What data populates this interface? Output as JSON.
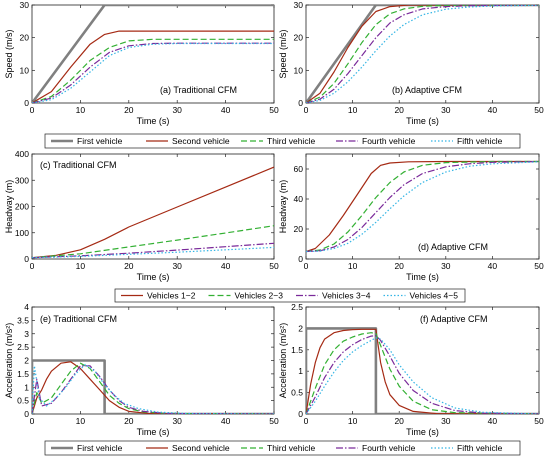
{
  "chart_data": [
    {
      "type": "line",
      "panel": "a",
      "annotation": "(a) Traditional CFM",
      "xlabel": "Time (s)",
      "ylabel": "Speed (m/s)",
      "xlim": [
        0,
        50
      ],
      "ylim": [
        0,
        30
      ],
      "xticks": [
        0,
        10,
        20,
        30,
        40,
        50
      ],
      "yticks": [
        0,
        10,
        20,
        30
      ],
      "series": [
        {
          "name": "First vehicle",
          "x": [
            0,
            15,
            50
          ],
          "y": [
            0,
            30,
            30
          ]
        },
        {
          "name": "Second vehicle",
          "x": [
            0,
            4,
            8,
            12,
            15,
            18,
            22,
            30,
            50
          ],
          "y": [
            0,
            3.5,
            11,
            18,
            21,
            22,
            22,
            22,
            22
          ]
        },
        {
          "name": "Third vehicle",
          "x": [
            0,
            4,
            8,
            12,
            16,
            20,
            25,
            30,
            50
          ],
          "y": [
            0,
            2,
            7,
            13,
            17,
            19,
            19.5,
            19.5,
            19.5
          ]
        },
        {
          "name": "Fourth vehicle",
          "x": [
            0,
            4,
            8,
            12,
            16,
            20,
            25,
            30,
            50
          ],
          "y": [
            0,
            1.5,
            5.5,
            11,
            15.5,
            17.5,
            18.2,
            18.3,
            18.3
          ]
        },
        {
          "name": "Fifth vehicle",
          "x": [
            0,
            4,
            8,
            12,
            16,
            20,
            25,
            30,
            50
          ],
          "y": [
            0,
            1,
            4.5,
            9.5,
            14.5,
            17,
            18,
            18.2,
            18.2
          ]
        }
      ]
    },
    {
      "type": "line",
      "panel": "b",
      "annotation": "(b) Adaptive CFM",
      "xlabel": "Time (s)",
      "ylabel": "Speed (m/s)",
      "xlim": [
        0,
        50
      ],
      "ylim": [
        0,
        30
      ],
      "xticks": [
        0,
        10,
        20,
        30,
        40,
        50
      ],
      "yticks": [
        0,
        10,
        20,
        30
      ],
      "series": [
        {
          "name": "First vehicle",
          "x": [
            0,
            15,
            50
          ],
          "y": [
            0,
            30,
            30
          ]
        },
        {
          "name": "Second vehicle",
          "x": [
            0,
            3,
            6,
            9,
            12,
            15,
            18,
            22,
            50
          ],
          "y": [
            0,
            3,
            9.5,
            17,
            23.5,
            28,
            29.5,
            30,
            30
          ]
        },
        {
          "name": "Third vehicle",
          "x": [
            0,
            3,
            6,
            9,
            12,
            15,
            18,
            21,
            25,
            30,
            50
          ],
          "y": [
            0,
            1.8,
            6,
            12,
            18.5,
            24,
            27.3,
            28.8,
            29.6,
            29.9,
            30
          ]
        },
        {
          "name": "Fourth vehicle",
          "x": [
            0,
            3,
            6,
            9,
            12,
            15,
            18,
            21,
            25,
            30,
            35,
            50
          ],
          "y": [
            0,
            1.2,
            4.2,
            9,
            14.5,
            20,
            24.5,
            27,
            28.8,
            29.5,
            29.8,
            30
          ]
        },
        {
          "name": "Fifth vehicle",
          "x": [
            0,
            3,
            6,
            9,
            12,
            15,
            18,
            21,
            25,
            30,
            35,
            40,
            50
          ],
          "y": [
            0,
            0.8,
            3,
            6.5,
            11,
            16,
            20.5,
            24,
            27,
            28.7,
            29.4,
            29.7,
            29.9
          ]
        }
      ]
    },
    {
      "type": "line",
      "panel": "c",
      "annotation": "(c) Traditional CFM",
      "xlabel": "Time (s)",
      "ylabel": "Headway (m)",
      "xlim": [
        0,
        50
      ],
      "ylim": [
        0,
        400
      ],
      "xticks": [
        0,
        10,
        20,
        30,
        40,
        50
      ],
      "yticks": [
        0,
        100,
        200,
        300,
        400
      ],
      "series": [
        {
          "name": "Vehicles 1−2",
          "x": [
            0,
            5,
            10,
            15,
            20,
            30,
            40,
            50
          ],
          "y": [
            5,
            14,
            35,
            75,
            122,
            198,
            274,
            350
          ]
        },
        {
          "name": "Vehicles 2−3",
          "x": [
            0,
            10,
            20,
            30,
            40,
            50
          ],
          "y": [
            5,
            20,
            46,
            72,
            99,
            127
          ]
        },
        {
          "name": "Vehicles 3−4",
          "x": [
            0,
            10,
            20,
            30,
            40,
            50
          ],
          "y": [
            5,
            12,
            22,
            34,
            47,
            60
          ]
        },
        {
          "name": "Vehicles 4−5",
          "x": [
            0,
            10,
            20,
            30,
            40,
            50
          ],
          "y": [
            5,
            10,
            18,
            26,
            35,
            44
          ]
        }
      ]
    },
    {
      "type": "line",
      "panel": "d",
      "annotation": "(d) Adaptive CFM",
      "xlabel": "Time (s)",
      "ylabel": "Headway (m)",
      "xlim": [
        0,
        50
      ],
      "ylim": [
        0,
        70
      ],
      "xticks": [
        0,
        10,
        20,
        30,
        40,
        50
      ],
      "yticks": [
        0,
        20,
        40,
        60
      ],
      "series": [
        {
          "name": "Vehicles 1−2",
          "x": [
            0,
            2,
            5,
            8,
            11,
            14,
            16,
            18,
            22,
            30,
            50
          ],
          "y": [
            5,
            7,
            16,
            29,
            43,
            57,
            62.5,
            64,
            64.8,
            65,
            65
          ]
        },
        {
          "name": "Vehicles 2−3",
          "x": [
            0,
            3,
            6,
            9,
            12,
            15,
            18,
            21,
            25,
            30,
            40,
            50
          ],
          "y": [
            5,
            6,
            10,
            18,
            29,
            41,
            51,
            58,
            62.5,
            64.3,
            65,
            65
          ]
        },
        {
          "name": "Vehicles 3−4",
          "x": [
            0,
            3,
            6,
            9,
            12,
            15,
            18,
            21,
            25,
            30,
            35,
            40,
            50
          ],
          "y": [
            5,
            5.5,
            8,
            13,
            21,
            31,
            41,
            49.5,
            57,
            61.5,
            63.5,
            64.5,
            65
          ]
        },
        {
          "name": "Vehicles 4−5",
          "x": [
            0,
            3,
            6,
            9,
            12,
            15,
            18,
            21,
            25,
            30,
            35,
            40,
            50
          ],
          "y": [
            5,
            5.3,
            7,
            10.5,
            16.5,
            24.5,
            33.5,
            42,
            51,
            58,
            61.8,
            63.5,
            64.8
          ]
        }
      ]
    },
    {
      "type": "line",
      "panel": "e",
      "annotation": "(e) Traditional CFM",
      "xlabel": "Time (s)",
      "ylabel": "Acceleration (m/s²)",
      "xlim": [
        0,
        50
      ],
      "ylim": [
        0,
        4
      ],
      "xticks": [
        0,
        10,
        20,
        30,
        40,
        50
      ],
      "yticks": [
        0,
        0.5,
        1,
        1.5,
        2,
        2.5,
        3,
        3.5,
        4
      ],
      "series": [
        {
          "name": "First vehicle",
          "x": [
            0,
            0,
            15,
            15,
            50
          ],
          "y": [
            0,
            2,
            2,
            0,
            0
          ]
        },
        {
          "name": "Second vehicle",
          "x": [
            0,
            1,
            2,
            3,
            4,
            6,
            8,
            10,
            12,
            14,
            16,
            18,
            20,
            24,
            50
          ],
          "y": [
            0,
            0.6,
            0.9,
            1.3,
            1.6,
            1.9,
            1.95,
            1.7,
            1.3,
            0.9,
            0.5,
            0.25,
            0.1,
            0.02,
            0
          ]
        },
        {
          "name": "Third vehicle",
          "x": [
            0,
            1,
            2,
            4,
            6,
            8,
            10,
            12,
            14,
            16,
            18,
            20,
            23,
            28,
            50
          ],
          "y": [
            0,
            0.8,
            0.4,
            0.6,
            1.1,
            1.6,
            1.9,
            1.7,
            1.2,
            0.7,
            0.4,
            0.2,
            0.08,
            0.02,
            0
          ]
        },
        {
          "name": "Fourth vehicle",
          "x": [
            0,
            1,
            2,
            4,
            6,
            8,
            10,
            12,
            14,
            16,
            18,
            20,
            23,
            28,
            50
          ],
          "y": [
            0,
            1.3,
            0.3,
            0.4,
            0.8,
            1.3,
            1.8,
            1.8,
            1.4,
            0.9,
            0.5,
            0.25,
            0.1,
            0.02,
            0
          ]
        },
        {
          "name": "Fifth vehicle",
          "x": [
            0,
            0.5,
            1.5,
            3,
            5,
            7,
            9,
            11,
            13,
            15,
            17,
            19,
            22,
            26,
            32,
            50
          ],
          "y": [
            0,
            1.8,
            0.6,
            0.3,
            0.6,
            1.0,
            1.5,
            1.85,
            1.6,
            1.1,
            0.7,
            0.4,
            0.2,
            0.07,
            0.02,
            0
          ]
        }
      ]
    },
    {
      "type": "line",
      "panel": "f",
      "annotation": "(f) Adaptive CFM",
      "xlabel": "Time (s)",
      "ylabel": "Acceleration (m/s²)",
      "xlim": [
        0,
        50
      ],
      "ylim": [
        0,
        2.5
      ],
      "xticks": [
        0,
        10,
        20,
        30,
        40,
        50
      ],
      "yticks": [
        0,
        0.5,
        1,
        1.5,
        2,
        2.5
      ],
      "series": [
        {
          "name": "First vehicle",
          "x": [
            0,
            0,
            15,
            15,
            50
          ],
          "y": [
            0,
            2,
            2,
            0,
            0
          ]
        },
        {
          "name": "Second vehicle",
          "x": [
            0,
            1,
            2,
            3,
            4,
            6,
            8,
            10,
            12,
            14,
            15,
            16,
            17,
            18,
            20,
            23,
            28,
            50
          ],
          "y": [
            0,
            0.7,
            1.2,
            1.55,
            1.75,
            1.9,
            1.95,
            1.97,
            1.98,
            1.98,
            1.98,
            1.2,
            0.75,
            0.45,
            0.2,
            0.06,
            0.01,
            0
          ]
        },
        {
          "name": "Third vehicle",
          "x": [
            0,
            2,
            4,
            6,
            8,
            10,
            12,
            14,
            15,
            16,
            18,
            20,
            23,
            27,
            32,
            50
          ],
          "y": [
            0,
            0.6,
            1.15,
            1.5,
            1.7,
            1.8,
            1.87,
            1.9,
            1.88,
            1.6,
            1.05,
            0.65,
            0.3,
            0.1,
            0.03,
            0
          ]
        },
        {
          "name": "Fourth vehicle",
          "x": [
            0,
            2,
            4,
            6,
            8,
            10,
            12,
            14,
            15,
            16,
            18,
            20,
            23,
            27,
            32,
            38,
            50
          ],
          "y": [
            0,
            0.4,
            0.85,
            1.2,
            1.45,
            1.62,
            1.74,
            1.82,
            1.83,
            1.72,
            1.35,
            0.95,
            0.55,
            0.25,
            0.08,
            0.02,
            0
          ]
        },
        {
          "name": "Fifth vehicle",
          "x": [
            0,
            2,
            4,
            6,
            8,
            10,
            12,
            14,
            15,
            16,
            18,
            20,
            23,
            27,
            32,
            38,
            50
          ],
          "y": [
            0,
            0.3,
            0.65,
            0.98,
            1.25,
            1.45,
            1.6,
            1.72,
            1.78,
            1.75,
            1.5,
            1.15,
            0.75,
            0.38,
            0.14,
            0.04,
            0
          ]
        }
      ]
    }
  ],
  "legends": {
    "vehicles": [
      "First vehicle",
      "Second vehicle",
      "Third vehicle",
      "Fourth vehicle",
      "Fifth vehicle"
    ],
    "pairs": [
      "Vehicles 1−2",
      "Vehicles 2−3",
      "Vehicles 3−4",
      "Vehicles 4−5"
    ]
  },
  "series_style": {
    "vehicle_colors": [
      "#808080",
      "#a52a14",
      "#33b033",
      "#7a2a9a",
      "#33b5e5"
    ],
    "vehicle_dash": [
      "none",
      "none",
      "6,3",
      "7,2,1.5,2",
      "1.5,2"
    ],
    "pair_colors": [
      "#a52a14",
      "#33b033",
      "#7a2a9a",
      "#33b5e5"
    ],
    "pair_dash": [
      "none",
      "6,3",
      "7,2,1.5,2",
      "1.5,2"
    ]
  }
}
